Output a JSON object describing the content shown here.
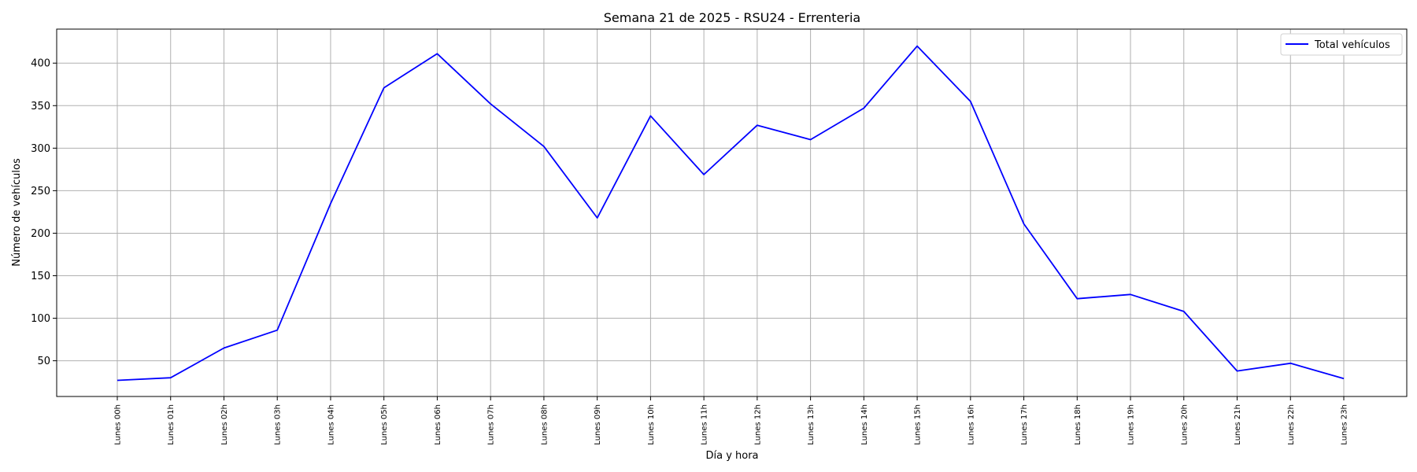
{
  "chart_data": {
    "type": "line",
    "title": "Semana 21 de 2025 - RSU24 - Errenteria",
    "xlabel": "Día y hora",
    "ylabel": "Número de vehículos",
    "categories": [
      "Lunes 00h",
      "Lunes 01h",
      "Lunes 02h",
      "Lunes 03h",
      "Lunes 04h",
      "Lunes 05h",
      "Lunes 06h",
      "Lunes 07h",
      "Lunes 08h",
      "Lunes 09h",
      "Lunes 10h",
      "Lunes 11h",
      "Lunes 12h",
      "Lunes 13h",
      "Lunes 14h",
      "Lunes 15h",
      "Lunes 16h",
      "Lunes 17h",
      "Lunes 18h",
      "Lunes 19h",
      "Lunes 20h",
      "Lunes 21h",
      "Lunes 22h",
      "Lunes 23h"
    ],
    "series": [
      {
        "name": "Total vehículos",
        "color": "#0000ff",
        "values": [
          27,
          30,
          65,
          86,
          235,
          371,
          411,
          352,
          302,
          218,
          338,
          269,
          327,
          310,
          347,
          420,
          355,
          211,
          123,
          128,
          108,
          38,
          47,
          29
        ]
      }
    ],
    "yticks": [
      50,
      100,
      150,
      200,
      250,
      300,
      350,
      400
    ],
    "ylim": [
      8,
      440
    ],
    "grid": true,
    "legend_position": "top-right"
  }
}
